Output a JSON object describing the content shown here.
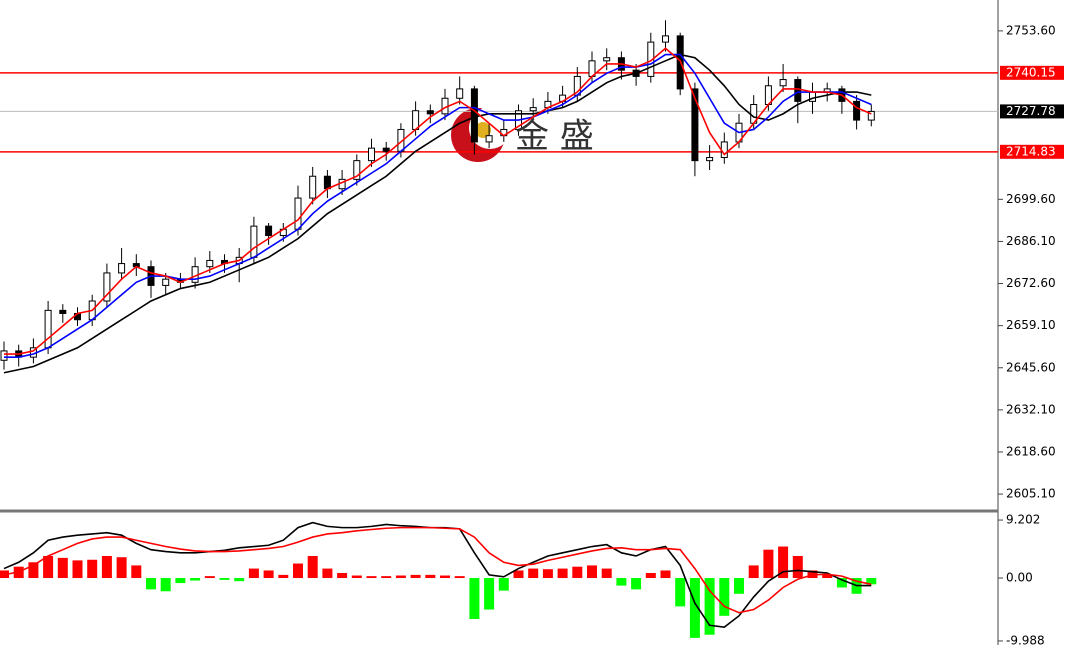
{
  "chart_data": [
    {
      "type": "candlestick",
      "open": [
        2648,
        2651,
        2649,
        2652,
        2664,
        2663,
        2661,
        2667,
        2676,
        2679,
        2678,
        2672,
        2674,
        2673,
        2678,
        2680,
        2679,
        2681,
        2691,
        2688,
        2690,
        2700,
        2707,
        2703,
        2706,
        2712,
        2716,
        2715,
        2722,
        2728,
        2727,
        2732,
        2735,
        2718,
        2720,
        2722,
        2728,
        2729,
        2731,
        2733,
        2739,
        2744,
        2745,
        2741,
        2739,
        2750,
        2752,
        2735,
        2712,
        2713,
        2718,
        2724,
        2730,
        2736,
        2738,
        2731,
        2734,
        2735,
        2731,
        2725
      ],
      "high": [
        2654,
        2653,
        2655,
        2667,
        2666,
        2665,
        2669,
        2679,
        2684,
        2682,
        2680,
        2676,
        2676,
        2681,
        2683,
        2682,
        2684,
        2694,
        2692,
        2692,
        2704,
        2710,
        2709,
        2709,
        2714,
        2719,
        2718,
        2724,
        2731,
        2730,
        2735,
        2739,
        2736,
        2724,
        2725,
        2730,
        2732,
        2734,
        2736,
        2742,
        2747,
        2748,
        2747,
        2743,
        2753,
        2757,
        2753,
        2737,
        2717,
        2721,
        2727,
        2733,
        2739,
        2743,
        2739,
        2737,
        2737,
        2736,
        2733,
        2730
      ],
      "low": [
        2645,
        2646,
        2647,
        2650,
        2660,
        2659,
        2659,
        2665,
        2674,
        2675,
        2668,
        2669,
        2671,
        2671,
        2676,
        2676,
        2673,
        2679,
        2685,
        2686,
        2688,
        2698,
        2700,
        2701,
        2704,
        2710,
        2712,
        2713,
        2720,
        2724,
        2725,
        2730,
        2714,
        2716,
        2718,
        2720,
        2725,
        2727,
        2729,
        2731,
        2737,
        2741,
        2738,
        2736,
        2737,
        2747,
        2733,
        2707,
        2709,
        2711,
        2716,
        2722,
        2728,
        2734,
        2724,
        2727,
        2731,
        2727,
        2722,
        2723
      ],
      "close": [
        2651,
        2649,
        2652,
        2664,
        2663,
        2661,
        2667,
        2676,
        2679,
        2678,
        2672,
        2674,
        2673,
        2678,
        2680,
        2679,
        2681,
        2691,
        2688,
        2690,
        2700,
        2707,
        2703,
        2706,
        2712,
        2716,
        2715,
        2722,
        2728,
        2727,
        2732,
        2735,
        2718,
        2720,
        2722,
        2728,
        2729,
        2731,
        2733,
        2739,
        2744,
        2745,
        2741,
        2739,
        2750,
        2752,
        2735,
        2712,
        2713,
        2718,
        2724,
        2730,
        2736,
        2738,
        2731,
        2734,
        2735,
        2731,
        2725,
        2727.78
      ],
      "series": [
        {
          "color": "#000000",
          "values": [
            2644,
            2645,
            2646,
            2648,
            2650,
            2652,
            2655,
            2658,
            2661,
            2664,
            2667,
            2669,
            2671,
            2672,
            2673,
            2675,
            2677,
            2679,
            2681,
            2684,
            2687,
            2691,
            2695,
            2698,
            2701,
            2704,
            2707,
            2711,
            2715,
            2718,
            2721,
            2724,
            2726,
            2727,
            2727,
            2727,
            2727,
            2728,
            2729,
            2731,
            2734,
            2737,
            2739,
            2740,
            2742,
            2744,
            2746,
            2745,
            2741,
            2736,
            2730,
            2726,
            2725,
            2727,
            2730,
            2732,
            2733,
            2734,
            2734,
            2733
          ]
        },
        {
          "color": "#0000ff",
          "values": [
            2649,
            2649,
            2650,
            2652,
            2655,
            2658,
            2661,
            2665,
            2669,
            2673,
            2675,
            2675,
            2674,
            2674,
            2675,
            2677,
            2679,
            2681,
            2684,
            2687,
            2690,
            2695,
            2699,
            2702,
            2705,
            2708,
            2711,
            2715,
            2719,
            2723,
            2726,
            2729,
            2729,
            2727,
            2725,
            2725,
            2726,
            2728,
            2730,
            2733,
            2737,
            2740,
            2742,
            2742,
            2743,
            2746,
            2746,
            2740,
            2732,
            2724,
            2721,
            2722,
            2726,
            2731,
            2734,
            2734,
            2734,
            2734,
            2732,
            2730
          ]
        },
        {
          "color": "#ff0000",
          "values": [
            2650,
            2650,
            2651,
            2655,
            2659,
            2663,
            2664,
            2669,
            2674,
            2678,
            2676,
            2675,
            2673,
            2675,
            2677,
            2679,
            2680,
            2684,
            2687,
            2690,
            2693,
            2699,
            2703,
            2705,
            2707,
            2711,
            2714,
            2718,
            2722,
            2726,
            2729,
            2731,
            2728,
            2724,
            2720,
            2723,
            2726,
            2729,
            2731,
            2734,
            2739,
            2743,
            2743,
            2742,
            2744,
            2748,
            2744,
            2732,
            2721,
            2714,
            2718,
            2724,
            2730,
            2735,
            2735,
            2734,
            2734,
            2733,
            2729,
            2727
          ]
        }
      ],
      "levels": [
        {
          "value": 2740.15,
          "color": "#ff0000"
        },
        {
          "value": 2714.83,
          "color": "#ff0000"
        }
      ],
      "current_price": {
        "value": 2727.78,
        "color": "#000000"
      },
      "ylim": [
        2600,
        2763.5
      ],
      "yticks": [
        {
          "value": 2753.6,
          "label": "2753.60"
        },
        {
          "value": 2699.6,
          "label": "2699.60"
        },
        {
          "value": 2686.1,
          "label": "2686.10"
        },
        {
          "value": 2672.6,
          "label": "2672.60"
        },
        {
          "value": 2659.1,
          "label": "2659.10"
        },
        {
          "value": 2645.6,
          "label": "2645.60"
        },
        {
          "value": 2632.1,
          "label": "2632.10"
        },
        {
          "value": 2618.6,
          "label": "2618.60"
        },
        {
          "value": 2605.1,
          "label": "2605.10"
        }
      ],
      "watermark": "金 盛"
    },
    {
      "type": "macd",
      "values": [
        1.2,
        1.8,
        2.5,
        3.5,
        3.2,
        2.8,
        2.9,
        3.5,
        3.3,
        2.0,
        -1.8,
        -2.1,
        -0.8,
        -0.4,
        0.3,
        -0.3,
        -0.5,
        1.5,
        1.2,
        0.5,
        2.3,
        3.5,
        1.5,
        0.8,
        0.4,
        0.3,
        0.3,
        0.4,
        0.5,
        0.5,
        0.4,
        0.3,
        -6.5,
        -5.0,
        -2.0,
        1.2,
        1.5,
        1.4,
        1.5,
        1.8,
        2.0,
        1.5,
        -1.2,
        -1.8,
        0.8,
        1.2,
        -4.5,
        -9.5,
        -9.0,
        -6.0,
        -2.5,
        2.0,
        4.5,
        5.0,
        3.5,
        1.2,
        0.5,
        -1.5,
        -2.5,
        -1.0
      ],
      "up_color": "#ff0000",
      "down_color": "#00ff00",
      "series": [
        {
          "color": "#000000",
          "values": [
            1.5,
            2.5,
            4.0,
            6.0,
            6.5,
            6.8,
            7.0,
            7.2,
            6.8,
            5.5,
            4.5,
            4.2,
            4.0,
            4.0,
            4.2,
            4.4,
            4.8,
            5.0,
            5.2,
            6.0,
            8.0,
            8.8,
            8.2,
            8.0,
            8.0,
            8.2,
            8.5,
            8.3,
            8.2,
            8.0,
            8.0,
            7.8,
            4.0,
            0.5,
            0.2,
            1.5,
            2.5,
            3.5,
            4.0,
            4.5,
            5.0,
            5.3,
            4.0,
            3.5,
            4.5,
            5.0,
            2.0,
            -4.0,
            -7.5,
            -7.8,
            -6.0,
            -3.0,
            -0.5,
            1.0,
            1.2,
            1.0,
            0.8,
            -0.3,
            -1.2,
            -1.2
          ]
        },
        {
          "color": "#ff0000",
          "values": [
            0.5,
            1.0,
            2.0,
            3.5,
            4.5,
            5.5,
            6.2,
            6.5,
            6.5,
            6.0,
            5.5,
            5.0,
            4.6,
            4.3,
            4.2,
            4.2,
            4.3,
            4.5,
            4.7,
            5.0,
            5.7,
            6.5,
            7.0,
            7.2,
            7.5,
            7.7,
            7.9,
            8.0,
            8.0,
            8.0,
            7.9,
            7.8,
            6.5,
            4.0,
            2.5,
            2.0,
            2.2,
            2.8,
            3.3,
            3.8,
            4.3,
            4.7,
            4.8,
            4.5,
            4.5,
            4.7,
            4.5,
            1.5,
            -2.0,
            -4.5,
            -5.5,
            -5.0,
            -3.5,
            -1.5,
            -0.2,
            0.5,
            0.6,
            0.3,
            -0.5,
            -1.0
          ]
        }
      ],
      "ylim": [
        -10.63,
        10.48
      ],
      "yticks": [
        9.202,
        {
          "value": 0,
          "label": "0.00"
        },
        -9.988
      ]
    }
  ]
}
